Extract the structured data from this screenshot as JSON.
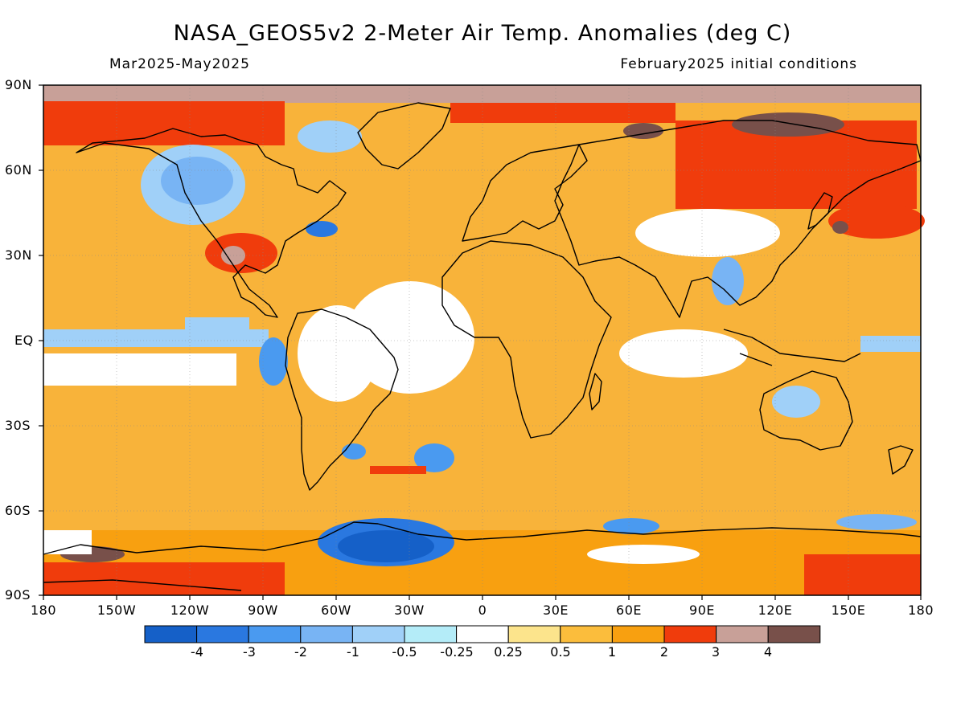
{
  "title": "NASA_GEOS5v2 2-Meter Air Temp. Anomalies (deg C)",
  "subtitle_left": "Mar2025-May2025",
  "subtitle_right": "February2025 initial conditions",
  "lat_labels": [
    "90N",
    "60N",
    "30N",
    "EQ",
    "30S",
    "60S",
    "90S"
  ],
  "lon_labels": [
    "180",
    "150W",
    "120W",
    "90W",
    "60W",
    "30W",
    "0",
    "30E",
    "60E",
    "90E",
    "120E",
    "150E",
    "180"
  ],
  "colorbar": {
    "labels": [
      "-4",
      "-3",
      "-2",
      "-1",
      "-0.5",
      "-0.25",
      "0.25",
      "0.5",
      "1",
      "2",
      "3",
      "4"
    ],
    "colors": [
      "#1560c8",
      "#2a78e0",
      "#4a9af0",
      "#78b4f4",
      "#a0d0f8",
      "#b4ecf8",
      "#ffffff",
      "#fce48c",
      "#fbbd3c",
      "#f8a010",
      "#f03c0c",
      "#c8a098",
      "#78504a"
    ]
  },
  "background_color": "#f8b33a"
}
